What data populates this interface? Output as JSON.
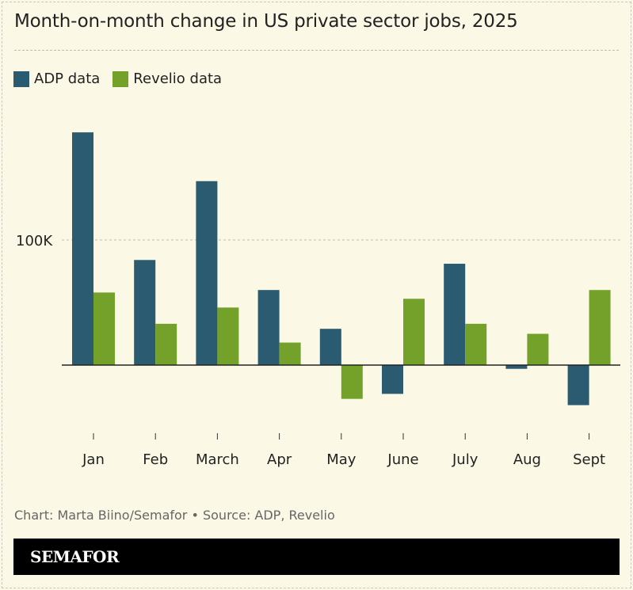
{
  "chart_data": {
    "type": "bar",
    "title": "Month-on-month change in US private sector jobs, 2025",
    "categories": [
      "Jan",
      "Feb",
      "March",
      "Apr",
      "May",
      "June",
      "July",
      "Aug",
      "Sept"
    ],
    "series": [
      {
        "name": "ADP data",
        "color": "#2a5b71",
        "values": [
          186000,
          84000,
          147000,
          60000,
          29000,
          -23000,
          81000,
          -3000,
          -32000
        ]
      },
      {
        "name": "Revelio data",
        "color": "#74a12a",
        "values": [
          58000,
          33000,
          46000,
          18000,
          -27000,
          53000,
          33000,
          25000,
          60000
        ]
      }
    ],
    "yticks": [
      {
        "value": 100000,
        "label": "100K"
      }
    ],
    "ylim": [
      -55000,
      200000
    ],
    "grid": true,
    "legend": "top-left",
    "xlabel": "",
    "ylabel": ""
  },
  "source": "Chart: Marta Biino/Semafor • Source: ADP, Revelio",
  "brand": "SEMAFOR",
  "background": "#fbf9e6"
}
